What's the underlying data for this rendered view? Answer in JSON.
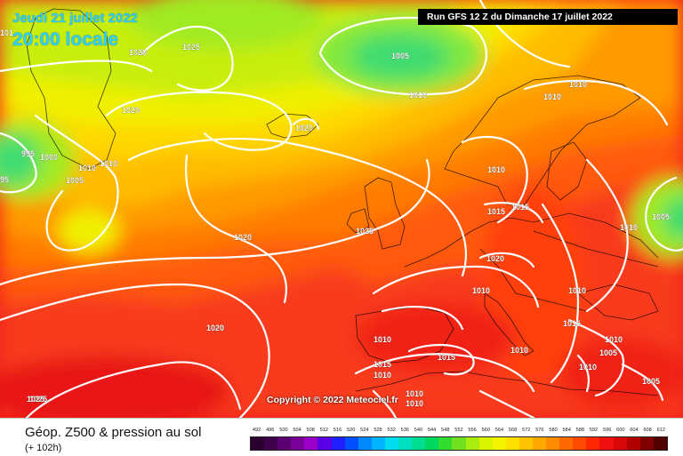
{
  "header": {
    "date": "Jeudi 21 juillet 2022",
    "time": "20:00 locale",
    "run": "Run GFS 12 Z du Dimanche 17 juillet 2022"
  },
  "copyright": "Copyright © 2022 Meteociel.fr",
  "footer": {
    "title": "Géop. Z500 & pression au sol",
    "subtitle": "(+ 102h)"
  },
  "scale": {
    "labels": [
      "492",
      "496",
      "500",
      "504",
      "508",
      "512",
      "516",
      "520",
      "524",
      "528",
      "532",
      "536",
      "540",
      "544",
      "548",
      "552",
      "556",
      "560",
      "564",
      "568",
      "572",
      "576",
      "580",
      "584",
      "588",
      "592",
      "596",
      "600",
      "604",
      "608",
      "612"
    ],
    "colors": [
      "#2b0030",
      "#3e004a",
      "#5a0070",
      "#7a009a",
      "#9a00c8",
      "#5a00e6",
      "#2020ff",
      "#0050ff",
      "#0088ff",
      "#00b4ff",
      "#00dcf0",
      "#00e0c0",
      "#00dc90",
      "#00d860",
      "#30dc30",
      "#70e020",
      "#a8ec10",
      "#d8f400",
      "#f4f400",
      "#ffe000",
      "#ffc400",
      "#ffa800",
      "#ff8c00",
      "#ff6a00",
      "#ff4a00",
      "#ff2800",
      "#f01010",
      "#d80808",
      "#b00000",
      "#800000",
      "#500000"
    ]
  },
  "isobar_labels": [
    {
      "text": "1020"
    },
    {
      "text": "1025"
    },
    {
      "text": "1020"
    },
    {
      "text": "1005"
    },
    {
      "text": "1010"
    },
    {
      "text": "1010"
    },
    {
      "text": "1010"
    },
    {
      "text": "1020"
    },
    {
      "text": "1020"
    },
    {
      "text": "995"
    },
    {
      "text": "1000"
    },
    {
      "text": "1005"
    },
    {
      "text": "1010"
    },
    {
      "text": "1010"
    },
    {
      "text": "95"
    },
    {
      "text": "1010"
    },
    {
      "text": "1015"
    },
    {
      "text": "1015"
    },
    {
      "text": "1005"
    },
    {
      "text": "1010"
    },
    {
      "text": "1020"
    },
    {
      "text": "1025"
    },
    {
      "text": "1020"
    },
    {
      "text": "1010"
    },
    {
      "text": "1010"
    },
    {
      "text": "1025"
    },
    {
      "text": "1010"
    },
    {
      "text": "1010"
    },
    {
      "text": "1015"
    },
    {
      "text": "1015"
    },
    {
      "text": "1010"
    },
    {
      "text": "1005"
    },
    {
      "text": "1010"
    },
    {
      "text": "1015"
    },
    {
      "text": "1010"
    },
    {
      "text": "1010"
    },
    {
      "text": "1010"
    },
    {
      "text": "1005"
    },
    {
      "text": "1025"
    },
    {
      "text": "101"
    }
  ]
}
